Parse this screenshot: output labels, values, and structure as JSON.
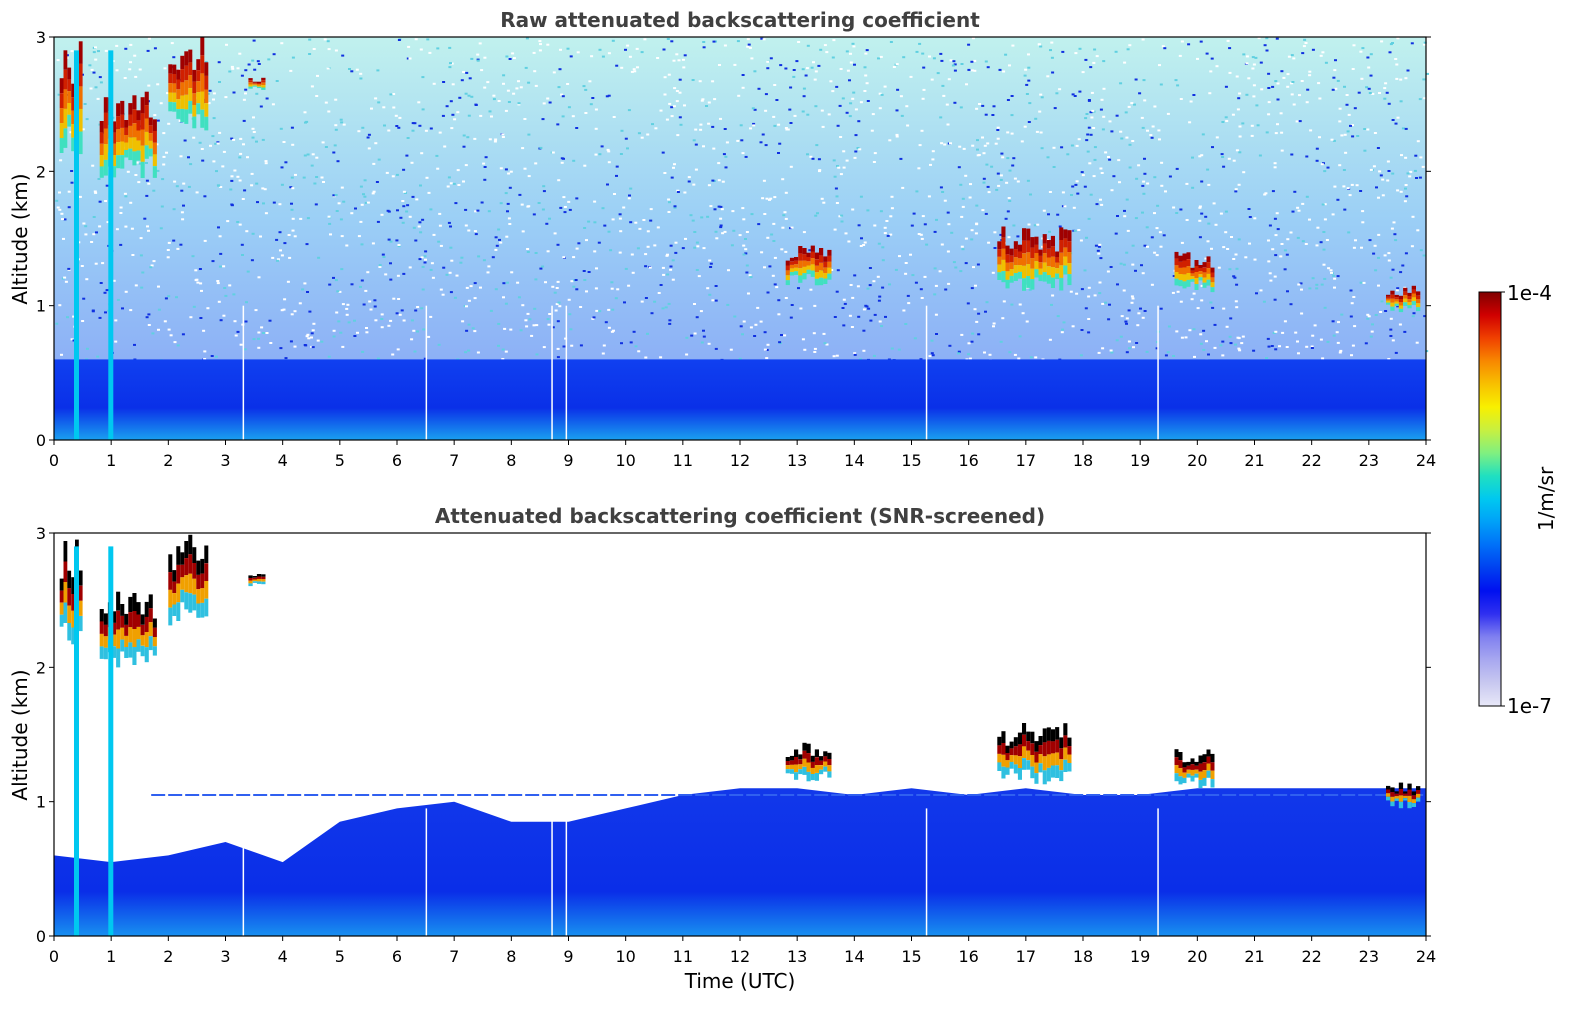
{
  "chart_data": [
    {
      "type": "heatmap",
      "title": "Raw attenuated backscattering coefficient",
      "ylabel": "Altitude (km)",
      "xlabel": "",
      "xlim": [
        0,
        24
      ],
      "ylim": [
        0,
        3
      ],
      "xticks": [
        "0",
        "1",
        "2",
        "3",
        "4",
        "5",
        "6",
        "7",
        "8",
        "9",
        "10",
        "11",
        "12",
        "13",
        "14",
        "15",
        "16",
        "17",
        "18",
        "19",
        "20",
        "21",
        "22",
        "23",
        "24"
      ],
      "yticks": [
        "0",
        "1",
        "2",
        "3"
      ],
      "features": {
        "boundary_layer_top_km": 0.6,
        "clouds": [
          {
            "t0": 0.1,
            "t1": 0.5,
            "z0": 2.1,
            "z1": 3.0
          },
          {
            "t0": 0.8,
            "t1": 1.8,
            "z0": 1.95,
            "z1": 2.6
          },
          {
            "t0": 2.0,
            "t1": 2.7,
            "z0": 2.3,
            "z1": 3.0
          },
          {
            "t0": 3.4,
            "t1": 3.7,
            "z0": 2.6,
            "z1": 2.7
          },
          {
            "t0": 12.8,
            "t1": 13.6,
            "z0": 1.15,
            "z1": 1.45
          },
          {
            "t0": 16.5,
            "t1": 17.8,
            "z0": 1.1,
            "z1": 1.6
          },
          {
            "t0": 19.6,
            "t1": 20.3,
            "z0": 1.1,
            "z1": 1.4
          },
          {
            "t0": 23.3,
            "t1": 23.9,
            "z0": 0.95,
            "z1": 1.15
          }
        ]
      }
    },
    {
      "type": "heatmap",
      "title": "Attenuated backscattering coefficient (SNR-screened)",
      "ylabel": "Altitude (km)",
      "xlabel": "Time (UTC)",
      "xlim": [
        0,
        24
      ],
      "ylim": [
        0,
        3
      ],
      "xticks": [
        "0",
        "1",
        "2",
        "3",
        "4",
        "5",
        "6",
        "7",
        "8",
        "9",
        "10",
        "11",
        "12",
        "13",
        "14",
        "15",
        "16",
        "17",
        "18",
        "19",
        "20",
        "21",
        "22",
        "23",
        "24"
      ],
      "yticks": [
        "0",
        "1",
        "2",
        "3"
      ],
      "features": {
        "boundary_layer_top_km": 1.0,
        "residual_layer_km": 1.05
      }
    }
  ],
  "colorbar": {
    "label": "1/m/sr",
    "max_label": "1e-4",
    "min_label": "1e-7",
    "colors": [
      "#e8e8f8",
      "#c8c8f0",
      "#a8a8f0",
      "#8080f0",
      "#3030f0",
      "#0010f0",
      "#0040f0",
      "#0070f8",
      "#00a0f8",
      "#00c8f0",
      "#20e0c0",
      "#80f080",
      "#c8f040",
      "#f8f000",
      "#f8c000",
      "#f88800",
      "#f04000",
      "#d00000",
      "#800000"
    ]
  }
}
